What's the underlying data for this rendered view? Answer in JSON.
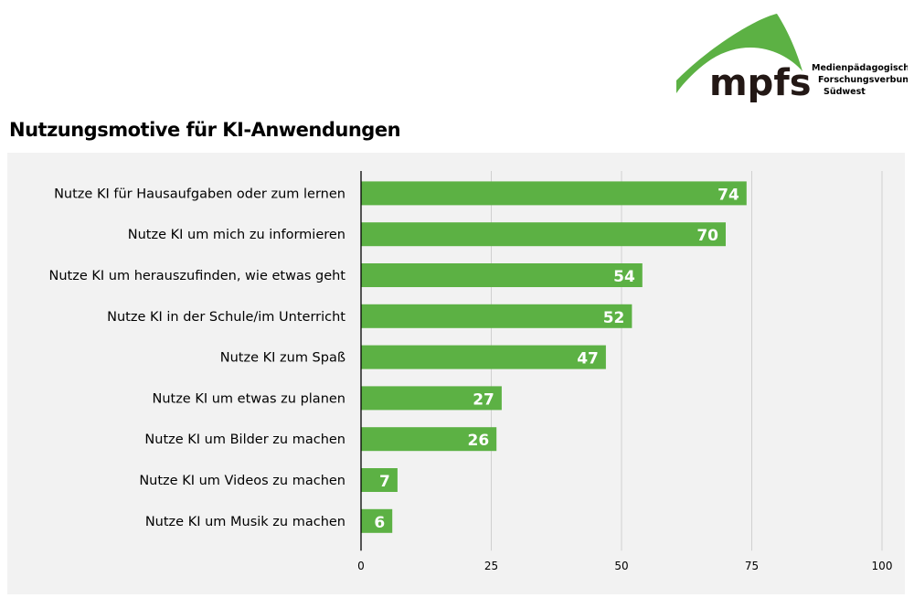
{
  "logo": {
    "text": "mpfs",
    "subtitle_lines": [
      "Medienpädagogischer",
      "Forschungsverbund",
      "Südwest"
    ],
    "color": "#5cb144"
  },
  "chart_data": {
    "type": "bar",
    "orientation": "horizontal",
    "title": "Nutzungsmotive für KI-Anwendungen",
    "categories": [
      "Nutze KI für Hausaufgaben oder zum lernen",
      "Nutze KI um mich zu informieren",
      "Nutze KI um herauszufinden, wie etwas geht",
      "Nutze KI in der Schule/im Unterricht",
      "Nutze KI zum Spaß",
      "Nutze KI um etwas zu planen",
      "Nutze KI um Bilder zu machen",
      "Nutze KI um Videos zu machen",
      "Nutze KI um Musik zu machen"
    ],
    "values": [
      74,
      70,
      54,
      52,
      47,
      27,
      26,
      7,
      6
    ],
    "xlim": [
      0,
      100
    ],
    "xticks": [
      0,
      25,
      50,
      75,
      100
    ],
    "grid": true,
    "bar_color": "#5cb144",
    "label_color": "#ffffff"
  }
}
